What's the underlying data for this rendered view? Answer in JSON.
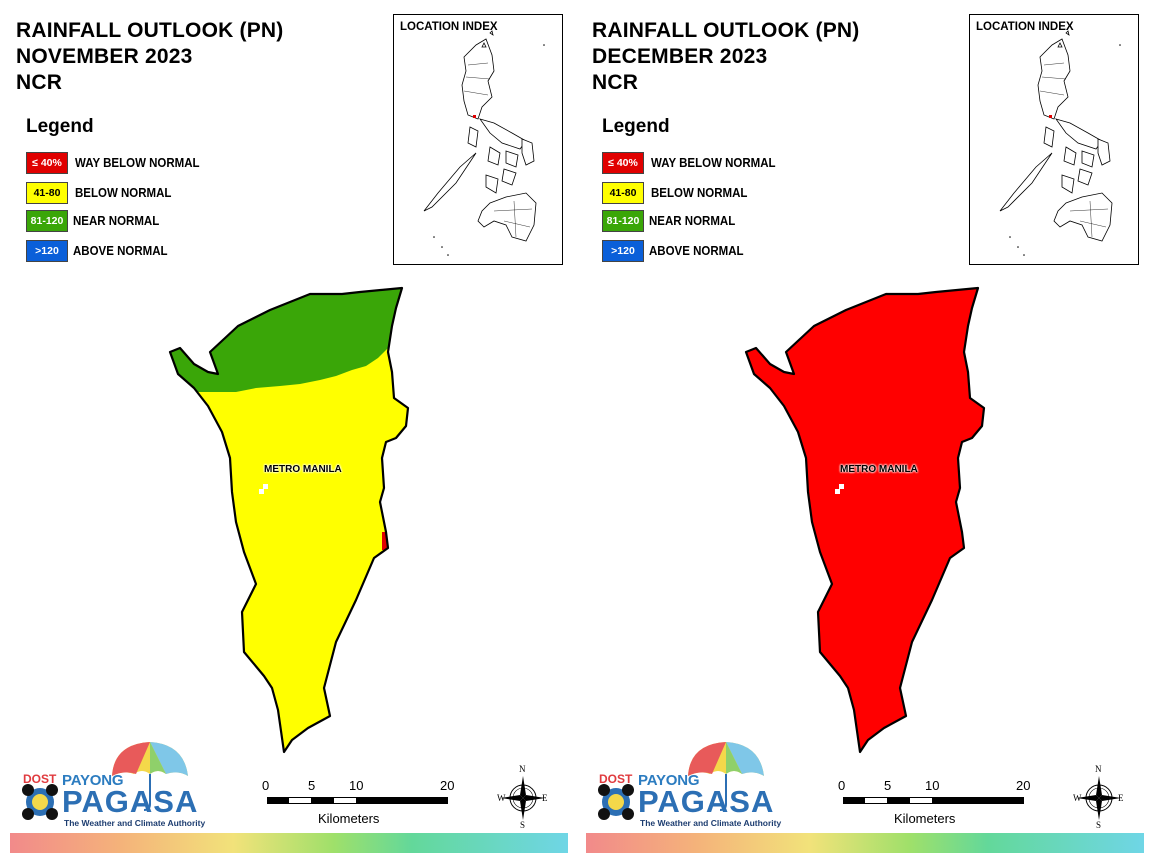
{
  "panels": [
    {
      "title_line1": "RAINFALL OUTLOOK (PN)",
      "title_line2": "NOVEMBER 2023",
      "title_line3": "NCR",
      "region_label": "METRO MANILA",
      "dominant_category": "BELOW NORMAL"
    },
    {
      "title_line1": "RAINFALL OUTLOOK (PN)",
      "title_line2": "DECEMBER 2023",
      "title_line3": "NCR",
      "region_label": "METRO MANILA",
      "dominant_category": "WAY BELOW NORMAL"
    }
  ],
  "legend": {
    "title": "Legend",
    "items": [
      {
        "range": "≤ 40%",
        "label": "WAY BELOW NORMAL",
        "color": "#e00000"
      },
      {
        "range": "41-80",
        "label": "BELOW NORMAL",
        "color": "#ffff00"
      },
      {
        "range": "81-120",
        "label": "NEAR NORMAL",
        "color": "#3aa608"
      },
      {
        "range": ">120",
        "label": "ABOVE NORMAL",
        "color": "#0a5fd9"
      }
    ]
  },
  "location_index": {
    "title": "LOCATION INDEX"
  },
  "scale_bar": {
    "ticks": [
      "0",
      "5",
      "10",
      "20"
    ],
    "unit": "Kilometers"
  },
  "compass": {
    "n": "N",
    "s": "S",
    "e": "E",
    "w": "W"
  },
  "logo": {
    "dost": "DOST",
    "payong": "PAYONG",
    "pagasa": "PAGASA",
    "tagline": "The Weather and Climate Authority"
  },
  "colors": {
    "near_normal": "#3aa608",
    "below_normal": "#ffff00",
    "way_below_normal": "#e00000"
  }
}
